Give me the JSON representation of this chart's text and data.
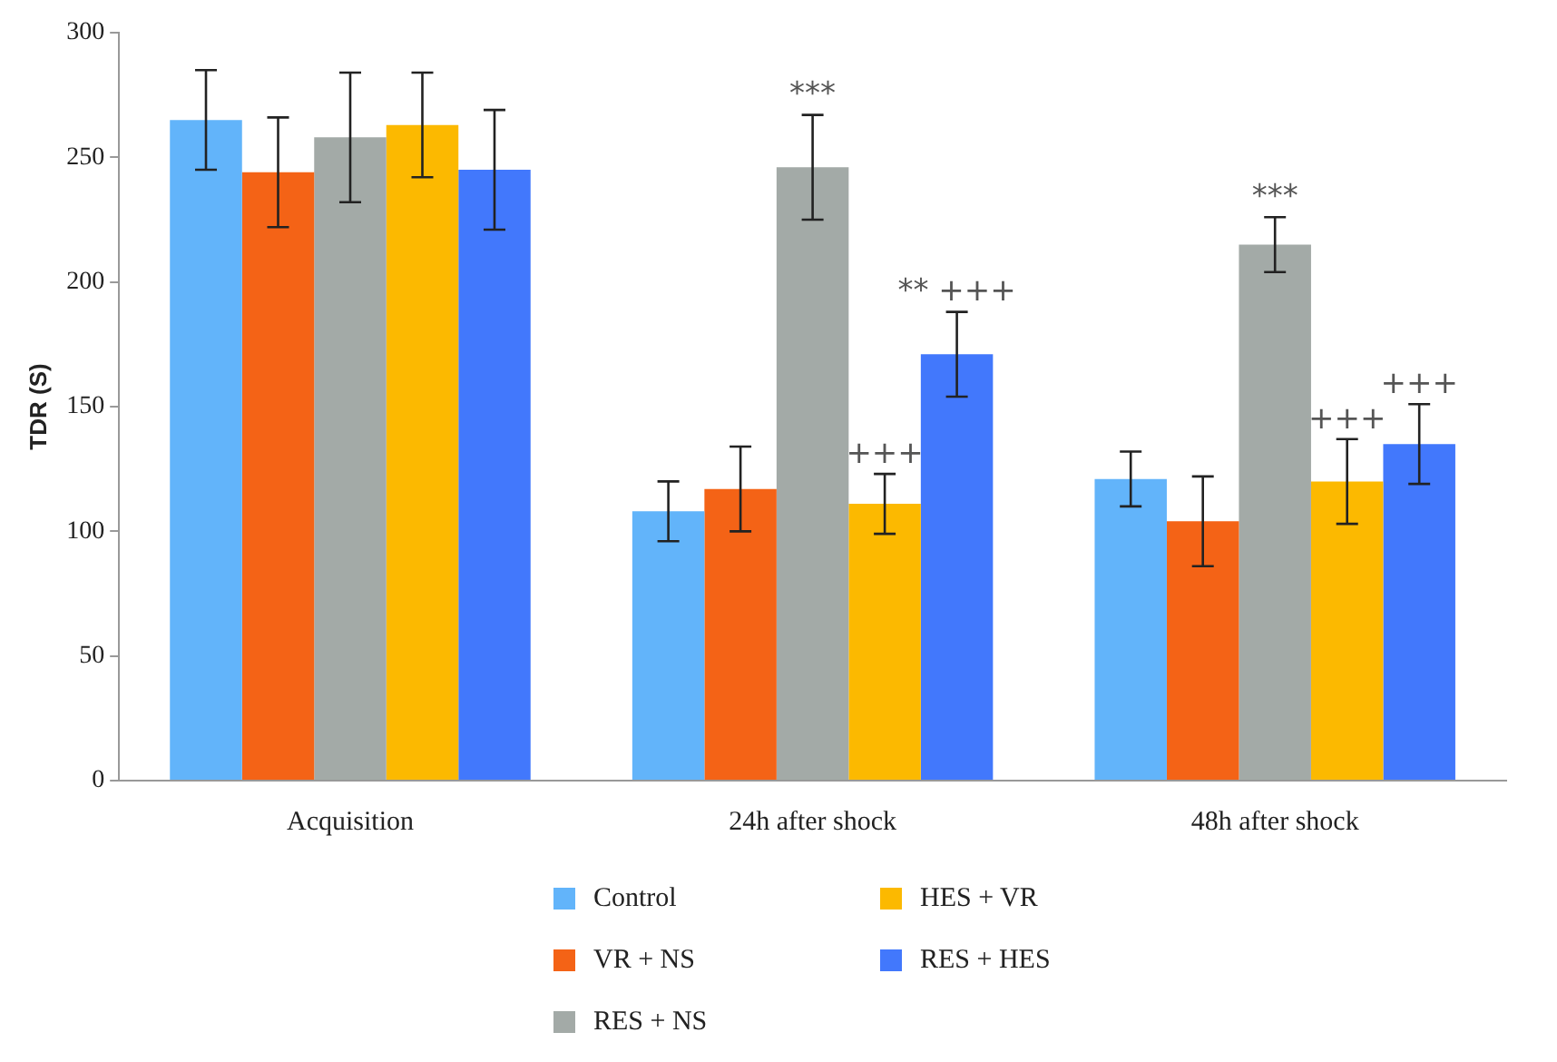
{
  "chart_data": {
    "type": "bar",
    "ylabel": "TDR (S)",
    "categories": [
      "Acquisition",
      "24h after shock",
      "48h after shock"
    ],
    "ylim": [
      0,
      300
    ],
    "yticks": [
      0,
      50,
      100,
      150,
      200,
      250,
      300
    ],
    "grid": false,
    "legend": "bottom",
    "series": [
      {
        "name": "Control",
        "color": "#62b4fa",
        "values": [
          265,
          108,
          121
        ],
        "errors": [
          20,
          12,
          11
        ]
      },
      {
        "name": "VR + NS",
        "color": "#f46316",
        "values": [
          244,
          117,
          104
        ],
        "errors": [
          22,
          17,
          18
        ]
      },
      {
        "name": "RES + NS",
        "color": "#a3aaa7",
        "values": [
          258,
          246,
          215
        ],
        "errors": [
          26,
          21,
          11
        ],
        "value_labels": [
          null,
          "***",
          "***"
        ]
      },
      {
        "name": "HES + VR",
        "color": "#fcb900",
        "values": [
          263,
          111,
          120
        ],
        "errors": [
          21,
          12,
          17
        ],
        "value_labels": [
          null,
          "+++",
          "+++"
        ]
      },
      {
        "name": "RES + HES",
        "color": "#4278fc",
        "values": [
          245,
          171,
          135
        ],
        "errors": [
          24,
          17,
          16
        ],
        "value_labels": [
          null,
          "** +++",
          "+++"
        ]
      }
    ]
  }
}
